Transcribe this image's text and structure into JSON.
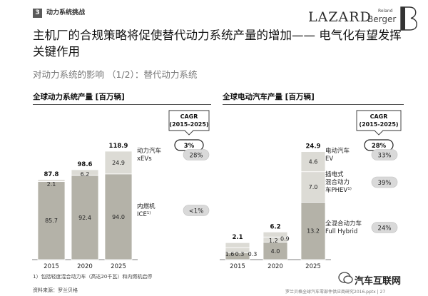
{
  "header": {
    "section_number": "3",
    "section_label": "动力系统挑战",
    "brand_lazard": "LAZARD",
    "brand_rb_top": "Roland",
    "brand_rb_bottom": "Berger",
    "title": "主机厂的合规策略将促使替代动力系统产量的增加—— 电气化有望发挥关键作用",
    "subtitle": "对动力系统的影响 （1/2）：替代动力系统"
  },
  "cagr_header": "CAGR\n(2015-2025)",
  "colors": {
    "bar_dark": "#b4b2a8",
    "bar_light": "#dcdbd5",
    "badge_bg": "#d9d9d9",
    "text": "#1a1a1a"
  },
  "chart_data": [
    {
      "type": "bar",
      "stacked": true,
      "title": "全球动力系统产量 [百万辆]",
      "categories": [
        "2015",
        "2020",
        "2025"
      ],
      "series": [
        {
          "name": "内燃机 ICE",
          "values": [
            85.7,
            92.4,
            94.0
          ]
        },
        {
          "name": "动力汽车 xEVs",
          "values": [
            2.1,
            6.2,
            24.9
          ]
        }
      ],
      "totals": [
        87.8,
        98.6,
        118.9
      ],
      "legend": [
        {
          "label": "动力汽车\nxEVs",
          "cagr": "28%"
        },
        {
          "label": "内燃机\nICE",
          "sup": "1)",
          "cagr": "<1%"
        }
      ],
      "total_cagr": "3%"
    },
    {
      "type": "bar",
      "stacked": true,
      "title": "全球电动汽车产量 [百万辆]",
      "categories": [
        "2015",
        "2020",
        "2025"
      ],
      "series": [
        {
          "name": "全混合动力车 Full Hybrid",
          "values": [
            1.6,
            4.0,
            13.2
          ]
        },
        {
          "name": "插电式混合动力车 PHEV",
          "values": [
            0.3,
            1.2,
            7.0
          ]
        },
        {
          "name": "电动汽车 EV",
          "values": [
            0.3,
            0.9,
            4.6
          ]
        }
      ],
      "totals": [
        2.1,
        6.2,
        24.9
      ],
      "legend": [
        {
          "label": "电动汽车\nEV",
          "cagr": "33%"
        },
        {
          "label": "插电式\n混合动力\n车PHEV",
          "sup": "1)",
          "cagr": "39%"
        },
        {
          "label": "全混合动力车\nFull Hybrid",
          "cagr": "24%"
        }
      ],
      "total_cagr": "28%"
    }
  ],
  "footnote": "1）包括轻度混合动力车（高达20千瓦）和内燃机启停",
  "source": "资料来源：罗兰贝格",
  "footer_right": "罗兰贝格全球汽车零部件供应商研究2016.pptx  |  27",
  "watermark": "汽车互联网"
}
